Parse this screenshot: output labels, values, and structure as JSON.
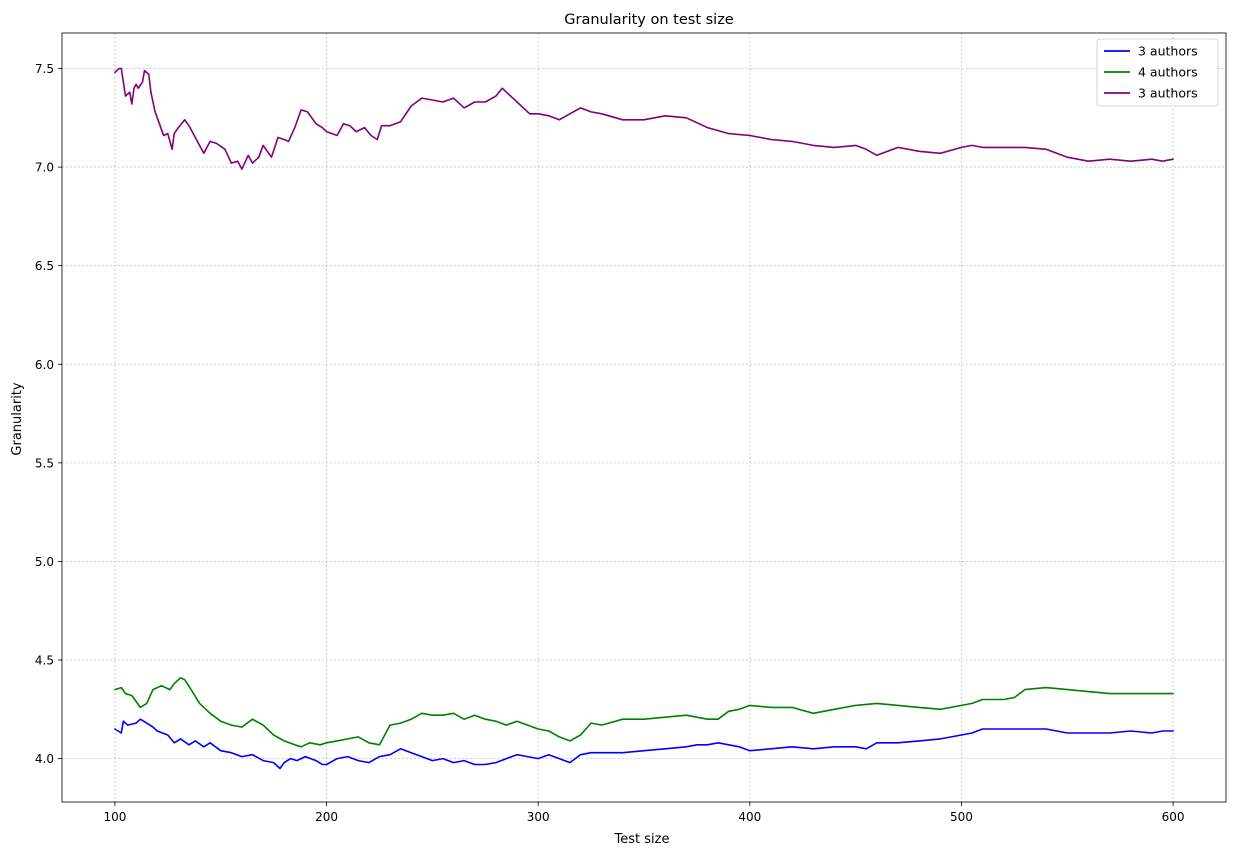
{
  "chart_data": {
    "type": "line",
    "title": "Granularity on test size",
    "xlabel": "Test size",
    "ylabel": "Granularity",
    "xlim": [
      75,
      625
    ],
    "ylim": [
      3.78,
      7.68
    ],
    "xticks": [
      100,
      200,
      300,
      400,
      500,
      600
    ],
    "yticks": [
      4.0,
      4.5,
      5.0,
      5.5,
      6.0,
      6.5,
      7.0,
      7.5
    ],
    "ytick_labels": [
      "4.0",
      "4.5",
      "5.0",
      "5.5",
      "6.0",
      "6.5",
      "7.0",
      "7.5"
    ],
    "grid": true,
    "legend_position": "top-right",
    "series": [
      {
        "name": "3 authors",
        "color": "#0000ff",
        "x": [
          100,
          103,
          104,
          106,
          110,
          112,
          115,
          118,
          120,
          125,
          128,
          131,
          135,
          138,
          142,
          145,
          150,
          155,
          160,
          165,
          170,
          175,
          178,
          180,
          183,
          186,
          190,
          195,
          198,
          200,
          205,
          210,
          215,
          220,
          225,
          230,
          235,
          240,
          245,
          250,
          255,
          260,
          265,
          270,
          275,
          280,
          285,
          290,
          295,
          300,
          305,
          310,
          315,
          320,
          325,
          330,
          340,
          350,
          360,
          370,
          375,
          380,
          385,
          390,
          395,
          400,
          410,
          420,
          430,
          440,
          450,
          455,
          460,
          470,
          480,
          490,
          500,
          505,
          510,
          520,
          530,
          540,
          550,
          560,
          570,
          580,
          590,
          595,
          600
        ],
        "y": [
          4.15,
          4.13,
          4.19,
          4.17,
          4.18,
          4.2,
          4.18,
          4.16,
          4.14,
          4.12,
          4.08,
          4.1,
          4.07,
          4.09,
          4.06,
          4.08,
          4.04,
          4.03,
          4.01,
          4.02,
          3.99,
          3.98,
          3.95,
          3.98,
          4.0,
          3.99,
          4.01,
          3.99,
          3.97,
          3.97,
          4.0,
          4.01,
          3.99,
          3.98,
          4.01,
          4.02,
          4.05,
          4.03,
          4.01,
          3.99,
          4.0,
          3.98,
          3.99,
          3.97,
          3.97,
          3.98,
          4.0,
          4.02,
          4.01,
          4.0,
          4.02,
          4.0,
          3.98,
          4.02,
          4.03,
          4.03,
          4.03,
          4.04,
          4.05,
          4.06,
          4.07,
          4.07,
          4.08,
          4.07,
          4.06,
          4.04,
          4.05,
          4.06,
          4.05,
          4.06,
          4.06,
          4.05,
          4.08,
          4.08,
          4.09,
          4.1,
          4.12,
          4.13,
          4.15,
          4.15,
          4.15,
          4.15,
          4.13,
          4.13,
          4.13,
          4.14,
          4.13,
          4.14,
          4.14
        ]
      },
      {
        "name": "4 authors",
        "color": "#008000",
        "x": [
          100,
          103,
          105,
          108,
          112,
          115,
          118,
          122,
          126,
          128,
          131,
          133,
          136,
          140,
          145,
          150,
          155,
          160,
          165,
          170,
          175,
          180,
          185,
          188,
          192,
          197,
          200,
          205,
          210,
          215,
          220,
          225,
          230,
          235,
          240,
          245,
          250,
          255,
          260,
          265,
          270,
          275,
          280,
          285,
          290,
          295,
          300,
          305,
          310,
          315,
          320,
          325,
          330,
          340,
          350,
          360,
          370,
          375,
          380,
          385,
          390,
          395,
          400,
          410,
          420,
          430,
          440,
          450,
          460,
          470,
          480,
          490,
          500,
          505,
          510,
          520,
          525,
          530,
          540,
          550,
          560,
          570,
          580,
          590,
          600
        ],
        "y": [
          4.35,
          4.36,
          4.33,
          4.32,
          4.26,
          4.28,
          4.35,
          4.37,
          4.35,
          4.38,
          4.41,
          4.4,
          4.35,
          4.28,
          4.23,
          4.19,
          4.17,
          4.16,
          4.2,
          4.17,
          4.12,
          4.09,
          4.07,
          4.06,
          4.08,
          4.07,
          4.08,
          4.09,
          4.1,
          4.11,
          4.08,
          4.07,
          4.17,
          4.18,
          4.2,
          4.23,
          4.22,
          4.22,
          4.23,
          4.2,
          4.22,
          4.2,
          4.19,
          4.17,
          4.19,
          4.17,
          4.15,
          4.14,
          4.11,
          4.09,
          4.12,
          4.18,
          4.17,
          4.2,
          4.2,
          4.21,
          4.22,
          4.21,
          4.2,
          4.2,
          4.24,
          4.25,
          4.27,
          4.26,
          4.26,
          4.23,
          4.25,
          4.27,
          4.28,
          4.27,
          4.26,
          4.25,
          4.27,
          4.28,
          4.3,
          4.3,
          4.31,
          4.35,
          4.36,
          4.35,
          4.34,
          4.33,
          4.33,
          4.33,
          4.33
        ]
      },
      {
        "name": "3 authors",
        "color": "#800080",
        "x": [
          100,
          102,
          103,
          105,
          107,
          108,
          109,
          110,
          111,
          113,
          114,
          116,
          117,
          119,
          121,
          123,
          125,
          127,
          128,
          130,
          133,
          135,
          138,
          142,
          145,
          148,
          152,
          155,
          158,
          160,
          163,
          165,
          168,
          170,
          174,
          177,
          180,
          182,
          185,
          188,
          191,
          195,
          198,
          200,
          205,
          208,
          211,
          214,
          218,
          221,
          224,
          226,
          230,
          235,
          240,
          245,
          250,
          255,
          260,
          265,
          270,
          275,
          280,
          283,
          288,
          292,
          296,
          300,
          305,
          310,
          315,
          320,
          325,
          330,
          340,
          350,
          360,
          370,
          380,
          390,
          400,
          410,
          420,
          430,
          440,
          450,
          455,
          460,
          470,
          480,
          490,
          500,
          505,
          510,
          520,
          530,
          540,
          550,
          560,
          570,
          580,
          590,
          595,
          600
        ],
        "y": [
          7.48,
          7.5,
          7.5,
          7.36,
          7.38,
          7.32,
          7.4,
          7.42,
          7.4,
          7.43,
          7.49,
          7.47,
          7.38,
          7.28,
          7.22,
          7.16,
          7.17,
          7.09,
          7.17,
          7.2,
          7.24,
          7.21,
          7.15,
          7.07,
          7.13,
          7.12,
          7.09,
          7.02,
          7.03,
          6.99,
          7.06,
          7.02,
          7.05,
          7.11,
          7.05,
          7.15,
          7.14,
          7.13,
          7.2,
          7.29,
          7.28,
          7.22,
          7.2,
          7.18,
          7.16,
          7.22,
          7.21,
          7.18,
          7.2,
          7.16,
          7.14,
          7.21,
          7.21,
          7.23,
          7.31,
          7.35,
          7.34,
          7.33,
          7.35,
          7.3,
          7.33,
          7.33,
          7.36,
          7.4,
          7.35,
          7.31,
          7.27,
          7.27,
          7.26,
          7.24,
          7.27,
          7.3,
          7.28,
          7.27,
          7.24,
          7.24,
          7.26,
          7.25,
          7.2,
          7.17,
          7.16,
          7.14,
          7.13,
          7.11,
          7.1,
          7.11,
          7.09,
          7.06,
          7.1,
          7.08,
          7.07,
          7.1,
          7.11,
          7.1,
          7.1,
          7.1,
          7.09,
          7.05,
          7.03,
          7.04,
          7.03,
          7.04,
          7.03,
          7.04
        ]
      }
    ]
  }
}
